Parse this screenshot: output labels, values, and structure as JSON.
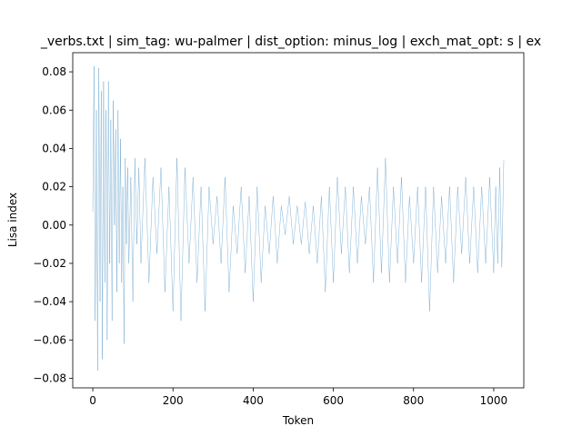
{
  "chart_data": {
    "type": "line",
    "title": "_verbs.txt | sim_tag: wu-palmer | dist_option: minus_log | exch_mat_opt: s | ex",
    "xlabel": "Token",
    "ylabel": "Lisa index",
    "xlim": [
      -50,
      1075
    ],
    "ylim": [
      -0.085,
      0.09
    ],
    "xticks": [
      0,
      200,
      400,
      600,
      800,
      1000
    ],
    "xtick_labels": [
      "0",
      "200",
      "400",
      "600",
      "800",
      "1000"
    ],
    "yticks": [
      -0.08,
      -0.06,
      -0.04,
      -0.02,
      0.0,
      0.02,
      0.04,
      0.06,
      0.08
    ],
    "ytick_labels": [
      "−0.08",
      "−0.06",
      "−0.04",
      "−0.02",
      "0.00",
      "0.02",
      "0.04",
      "0.06",
      "0.08"
    ],
    "grid": false,
    "legend": "none",
    "color": "#1f77b4",
    "series": [
      {
        "x": [
          0,
          3,
          6,
          9,
          12,
          15,
          18,
          21,
          24,
          27,
          30,
          33,
          36,
          39,
          42,
          45,
          48,
          51,
          54,
          57,
          60,
          63,
          66,
          69,
          72,
          75,
          78,
          81,
          84,
          87,
          90,
          95,
          100,
          105,
          110,
          115,
          120,
          130,
          140,
          150,
          160,
          170,
          180,
          190,
          200,
          210,
          220,
          230,
          240,
          250,
          260,
          270,
          280,
          290,
          300,
          310,
          320,
          330,
          340,
          350,
          360,
          370,
          380,
          390,
          400,
          410,
          420,
          430,
          440,
          450,
          460,
          470,
          480,
          490,
          500,
          510,
          520,
          530,
          540,
          550,
          560,
          570,
          580,
          590,
          600,
          610,
          620,
          630,
          640,
          650,
          660,
          670,
          680,
          690,
          700,
          710,
          720,
          730,
          740,
          750,
          760,
          770,
          780,
          790,
          800,
          810,
          820,
          830,
          840,
          850,
          860,
          870,
          880,
          890,
          900,
          910,
          920,
          930,
          940,
          950,
          960,
          970,
          980,
          990,
          1000,
          1005,
          1010,
          1015,
          1020,
          1025
        ],
        "values": [
          0.007,
          0.083,
          -0.05,
          0.06,
          -0.076,
          0.082,
          -0.04,
          0.07,
          -0.07,
          0.075,
          -0.03,
          0.06,
          -0.06,
          0.075,
          -0.02,
          0.055,
          -0.05,
          0.065,
          0.0,
          0.05,
          -0.035,
          0.06,
          -0.02,
          0.045,
          -0.03,
          0.02,
          -0.062,
          0.035,
          -0.01,
          0.03,
          -0.02,
          0.025,
          -0.04,
          0.035,
          -0.01,
          0.03,
          -0.02,
          0.035,
          -0.03,
          0.025,
          -0.015,
          0.03,
          -0.035,
          0.02,
          -0.045,
          0.035,
          -0.05,
          0.03,
          -0.02,
          0.025,
          -0.03,
          0.02,
          -0.045,
          0.02,
          -0.01,
          0.015,
          -0.02,
          0.025,
          -0.035,
          0.01,
          -0.015,
          0.02,
          -0.025,
          0.015,
          -0.04,
          0.02,
          -0.03,
          0.01,
          -0.015,
          0.015,
          -0.02,
          0.01,
          -0.005,
          0.015,
          -0.01,
          0.01,
          -0.01,
          0.012,
          -0.015,
          0.01,
          -0.02,
          0.015,
          -0.035,
          0.02,
          -0.03,
          0.025,
          -0.015,
          0.02,
          -0.025,
          0.02,
          -0.02,
          0.015,
          -0.01,
          0.02,
          -0.03,
          0.03,
          -0.025,
          0.035,
          -0.03,
          0.02,
          -0.02,
          0.025,
          -0.03,
          0.015,
          -0.02,
          0.02,
          -0.03,
          0.02,
          -0.045,
          0.02,
          -0.025,
          0.015,
          -0.02,
          0.02,
          -0.03,
          0.02,
          -0.015,
          0.025,
          -0.02,
          0.02,
          -0.025,
          0.02,
          -0.02,
          0.025,
          -0.025,
          0.02,
          -0.02,
          0.03,
          -0.022,
          0.034
        ]
      }
    ]
  }
}
